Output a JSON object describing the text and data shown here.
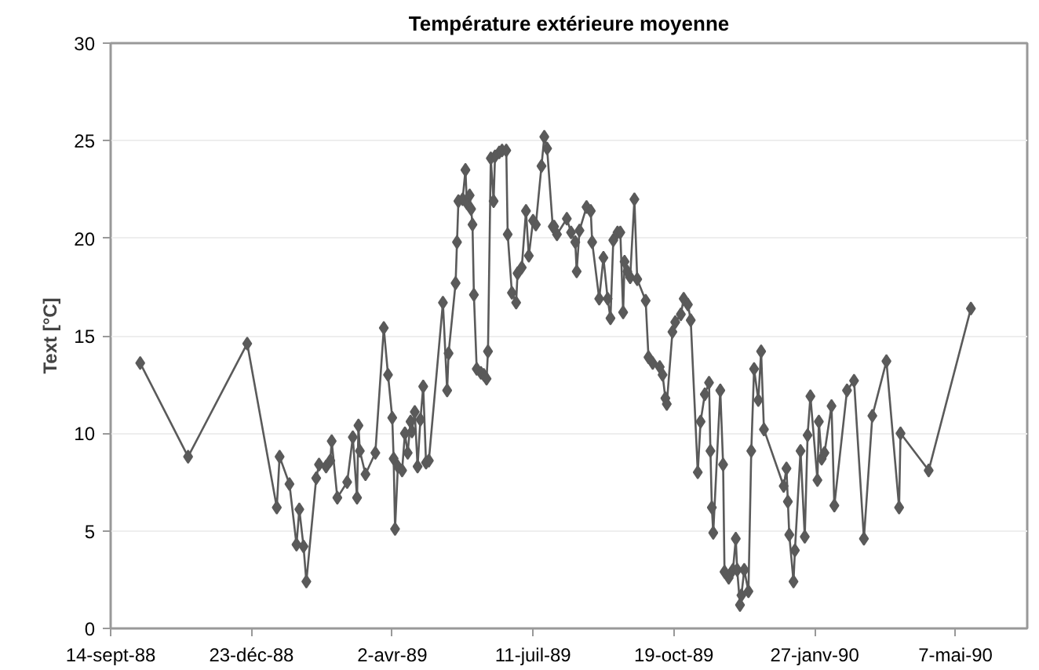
{
  "chart_data": {
    "type": "line",
    "title": "Température extérieure moyenne",
    "ylabel": "Text [°C]",
    "xlim": [
      "1988-09-14",
      "1990-06-27"
    ],
    "ylim": [
      0,
      30
    ],
    "xticks": [
      {
        "value": "1988-09-14",
        "label": "14-sept-88"
      },
      {
        "value": "1988-12-23",
        "label": "23-déc-88"
      },
      {
        "value": "1989-04-02",
        "label": "2-avr-89"
      },
      {
        "value": "1989-07-11",
        "label": "11-juil-89"
      },
      {
        "value": "1989-10-19",
        "label": "19-oct-89"
      },
      {
        "value": "1990-01-27",
        "label": "27-janv-90"
      },
      {
        "value": "1990-05-07",
        "label": "7-mai-90"
      }
    ],
    "yticks": [
      0,
      5,
      10,
      15,
      20,
      25,
      30
    ],
    "grid": "y",
    "marker": "diamond",
    "line_style": "solid",
    "series": [
      {
        "color": "#5a5a5a",
        "x": [
          "1988-10-05",
          "1988-11-08",
          "1988-12-20",
          "1989-01-10",
          "1989-01-12",
          "1989-01-19",
          "1989-01-24",
          "1989-01-26",
          "1989-01-29",
          "1989-01-31",
          "1989-02-07",
          "1989-02-09",
          "1989-02-14",
          "1989-02-17",
          "1989-02-18",
          "1989-02-22",
          "1989-03-01",
          "1989-03-05",
          "1989-03-08",
          "1989-03-09",
          "1989-03-10",
          "1989-03-14",
          "1989-03-21",
          "1989-03-27",
          "1989-03-30",
          "1989-04-02",
          "1989-04-03",
          "1989-04-04",
          "1989-04-06",
          "1989-04-09",
          "1989-04-11",
          "1989-04-13",
          "1989-04-15",
          "1989-04-16",
          "1989-04-18",
          "1989-04-20",
          "1989-04-22",
          "1989-04-24",
          "1989-04-26",
          "1989-04-28",
          "1989-05-08",
          "1989-05-11",
          "1989-05-12",
          "1989-05-17",
          "1989-05-18",
          "1989-05-19",
          "1989-05-22",
          "1989-05-24",
          "1989-05-25",
          "1989-05-27",
          "1989-05-28",
          "1989-05-29",
          "1989-05-30",
          "1989-06-01",
          "1989-06-04",
          "1989-06-06",
          "1989-06-08",
          "1989-06-09",
          "1989-06-11",
          "1989-06-13",
          "1989-06-14",
          "1989-06-17",
          "1989-06-19",
          "1989-06-22",
          "1989-06-23",
          "1989-06-26",
          "1989-06-29",
          "1989-06-30",
          "1989-07-03",
          "1989-07-06",
          "1989-07-08",
          "1989-07-11",
          "1989-07-13",
          "1989-07-17",
          "1989-07-19",
          "1989-07-21",
          "1989-07-25",
          "1989-07-26",
          "1989-07-28",
          "1989-08-04",
          "1989-08-07",
          "1989-08-10",
          "1989-08-11",
          "1989-08-13",
          "1989-08-18",
          "1989-08-21",
          "1989-08-22",
          "1989-08-27",
          "1989-08-30",
          "1989-09-02",
          "1989-09-04",
          "1989-09-06",
          "1989-09-09",
          "1989-09-11",
          "1989-09-13",
          "1989-09-14",
          "1989-09-16",
          "1989-09-18",
          "1989-09-21",
          "1989-09-23",
          "1989-09-29",
          "1989-10-01",
          "1989-10-04",
          "1989-10-09",
          "1989-10-11",
          "1989-10-13",
          "1989-10-14",
          "1989-10-18",
          "1989-10-20",
          "1989-10-24",
          "1989-10-26",
          "1989-10-29",
          "1989-10-31",
          "1989-11-05",
          "1989-11-07",
          "1989-11-10",
          "1989-11-13",
          "1989-11-14",
          "1989-11-15",
          "1989-11-16",
          "1989-11-21",
          "1989-11-23",
          "1989-11-24",
          "1989-11-27",
          "1989-11-30",
          "1989-12-02",
          "1989-12-03",
          "1989-12-05",
          "1989-12-06",
          "1989-12-08",
          "1989-12-11",
          "1989-12-13",
          "1989-12-15",
          "1989-12-18",
          "1989-12-20",
          "1989-12-22",
          "1990-01-05",
          "1990-01-07",
          "1990-01-08",
          "1990-01-09",
          "1990-01-12",
          "1990-01-13",
          "1990-01-17",
          "1990-01-20",
          "1990-01-22",
          "1990-01-24",
          "1990-01-29",
          "1990-01-30",
          "1990-02-01",
          "1990-02-03",
          "1990-02-08",
          "1990-02-10",
          "1990-02-19",
          "1990-02-24",
          "1990-03-03",
          "1990-03-09",
          "1990-03-19",
          "1990-03-28",
          "1990-03-29",
          "1990-04-18",
          "1990-05-18"
        ],
        "values": [
          13.6,
          8.8,
          14.6,
          6.2,
          8.8,
          7.4,
          4.3,
          6.1,
          4.2,
          2.4,
          7.7,
          8.4,
          8.3,
          8.6,
          9.6,
          6.7,
          7.5,
          9.8,
          6.7,
          10.4,
          9.1,
          7.9,
          9.0,
          15.4,
          13.0,
          10.8,
          8.7,
          5.1,
          8.3,
          8.1,
          10.0,
          9.0,
          10.6,
          10.1,
          11.1,
          8.3,
          10.7,
          12.4,
          8.5,
          8.6,
          16.7,
          12.2,
          14.1,
          17.7,
          19.8,
          21.9,
          22.0,
          23.5,
          21.8,
          22.2,
          21.5,
          20.7,
          17.1,
          13.3,
          13.1,
          13.0,
          12.8,
          14.2,
          24.1,
          21.9,
          24.2,
          24.4,
          24.5,
          24.5,
          20.2,
          17.2,
          16.7,
          18.2,
          18.5,
          21.4,
          19.1,
          20.9,
          20.7,
          23.7,
          25.2,
          24.6,
          20.6,
          20.6,
          20.2,
          21.0,
          20.3,
          19.8,
          18.3,
          20.4,
          21.6,
          21.4,
          19.8,
          16.9,
          19.0,
          16.9,
          15.9,
          19.9,
          20.3,
          20.3,
          16.2,
          18.8,
          18.3,
          18.0,
          22.0,
          17.9,
          16.8,
          13.9,
          13.6,
          13.4,
          13.0,
          11.8,
          11.5,
          15.2,
          15.7,
          16.1,
          16.9,
          16.6,
          15.8,
          8.0,
          10.6,
          12.0,
          12.6,
          9.1,
          6.2,
          4.9,
          12.2,
          8.4,
          2.9,
          2.6,
          3.0,
          4.6,
          3.0,
          1.2,
          1.7,
          3.0,
          1.9,
          9.1,
          13.3,
          11.7,
          14.2,
          10.2,
          7.3,
          8.2,
          6.5,
          4.8,
          2.4,
          4.0,
          9.1,
          4.7,
          9.9,
          11.9,
          7.6,
          10.6,
          8.7,
          9.0,
          11.4,
          6.3,
          12.2,
          12.7,
          4.6,
          10.9,
          13.7,
          6.2,
          10.0,
          8.1,
          16.4
        ]
      }
    ]
  }
}
